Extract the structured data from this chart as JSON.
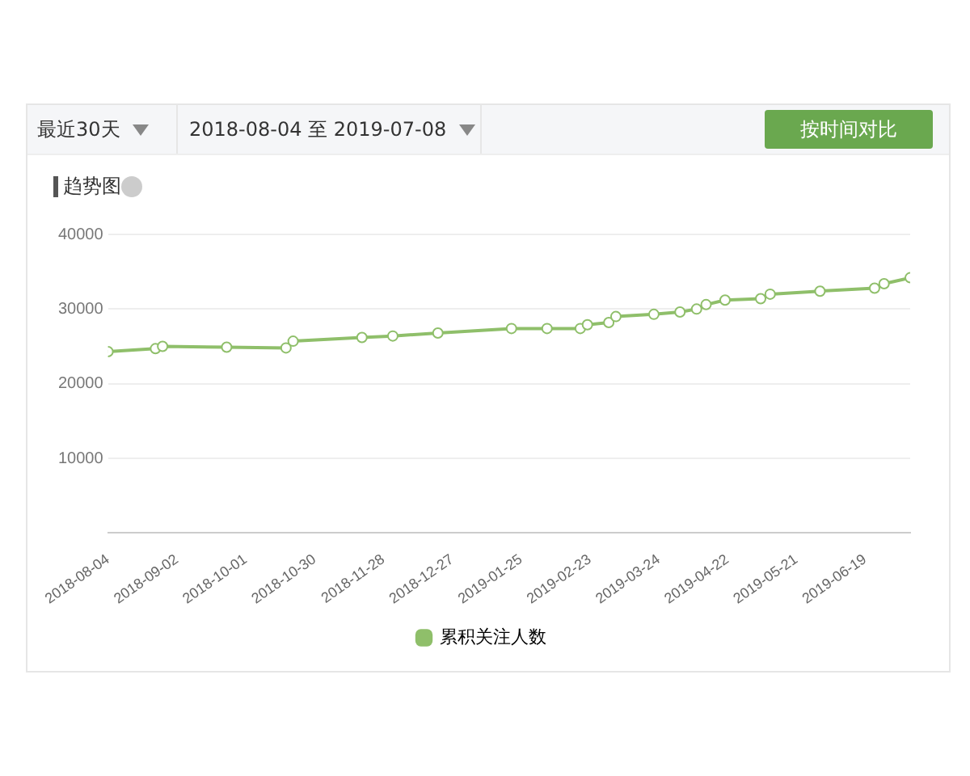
{
  "chart_data": {
    "type": "line",
    "title": "趋势图",
    "annotations": [
      "最近30天",
      "2018-08-04 至 2019-07-08",
      "按时间对比"
    ],
    "x": [
      "2018-08-04",
      "2018-08-24",
      "2018-08-27",
      "2018-09-23",
      "2018-10-18",
      "2018-10-21",
      "2018-11-19",
      "2018-12-02",
      "2018-12-21",
      "2019-01-21",
      "2019-02-05",
      "2019-02-19",
      "2019-02-22",
      "2019-03-03",
      "2019-03-06",
      "2019-03-22",
      "2019-04-02",
      "2019-04-09",
      "2019-04-13",
      "2019-04-21",
      "2019-05-06",
      "2019-05-10",
      "2019-05-31",
      "2019-06-23",
      "2019-06-27",
      "2019-07-08"
    ],
    "series": [
      {
        "name": "累积关注人数",
        "color": "#8fbf6a",
        "values": [
          24300,
          24700,
          25000,
          24900,
          24800,
          25700,
          26200,
          26400,
          26800,
          27400,
          27400,
          27400,
          27900,
          28200,
          29000,
          29300,
          29600,
          30000,
          30600,
          31200,
          31400,
          32000,
          32400,
          32800,
          33400,
          34200
        ]
      }
    ],
    "xlim": [
      "2018-08-04",
      "2019-07-08"
    ],
    "xticks": [
      {
        "value": "2018-08-04",
        "label": "2018-08-04"
      },
      {
        "value": "2018-09-02",
        "label": "2018-09-02"
      },
      {
        "value": "2018-10-01",
        "label": "2018-10-01"
      },
      {
        "value": "2018-10-30",
        "label": "2018-10-30"
      },
      {
        "value": "2018-11-28",
        "label": "2018-11-28"
      },
      {
        "value": "2018-12-27",
        "label": "2018-12-27"
      },
      {
        "value": "2019-01-25",
        "label": "2019-01-25"
      },
      {
        "value": "2019-02-23",
        "label": "2019-02-23"
      },
      {
        "value": "2019-03-24",
        "label": "2019-03-24"
      },
      {
        "value": "2019-04-22",
        "label": "2019-04-22"
      },
      {
        "value": "2019-05-21",
        "label": "2019-05-21"
      },
      {
        "value": "2019-06-19",
        "label": "2019-06-19"
      }
    ],
    "ylim": [
      0,
      40000
    ],
    "yticks": [
      10000,
      20000,
      30000,
      40000
    ],
    "grid": "y",
    "legend": "bottom",
    "marker": "circle",
    "line_style": "solid"
  }
}
